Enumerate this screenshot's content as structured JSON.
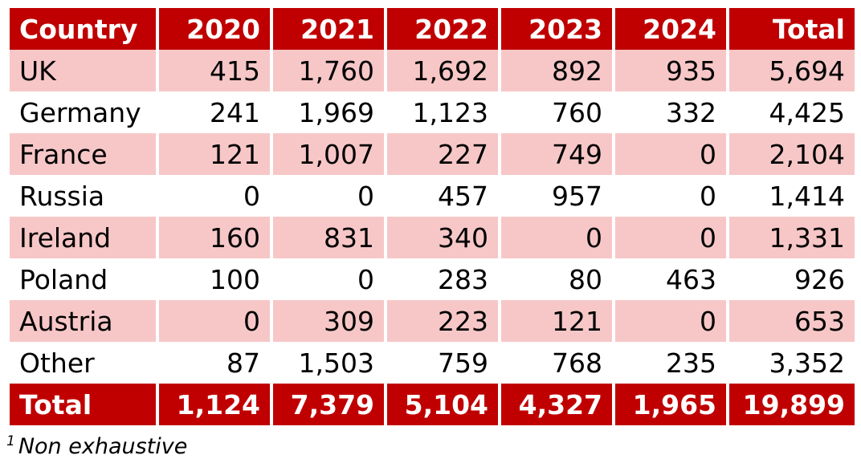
{
  "table": {
    "headers": [
      "Country",
      "2020",
      "2021",
      "2022",
      "2023",
      "2024",
      "Total"
    ],
    "rows": [
      [
        "UK",
        "415",
        "1,760",
        "1,692",
        "892",
        "935",
        "5,694"
      ],
      [
        "Germany",
        "241",
        "1,969",
        "1,123",
        "760",
        "332",
        "4,425"
      ],
      [
        "France",
        "121",
        "1,007",
        "227",
        "749",
        "0",
        "2,104"
      ],
      [
        "Russia",
        "0",
        "0",
        "457",
        "957",
        "0",
        "1,414"
      ],
      [
        "Ireland",
        "160",
        "831",
        "340",
        "0",
        "0",
        "1,331"
      ],
      [
        "Poland",
        "100",
        "0",
        "283",
        "80",
        "463",
        "926"
      ],
      [
        "Austria",
        "0",
        "309",
        "223",
        "121",
        "0",
        "653"
      ],
      [
        "Other",
        "87",
        "1,503",
        "759",
        "768",
        "235",
        "3,352"
      ]
    ],
    "total": [
      "Total",
      "1,124",
      "7,379",
      "5,104",
      "4,327",
      "1,965",
      "19,899"
    ]
  },
  "colors": {
    "header_bg": "#c00000",
    "shade_bg": "#f7c7c7"
  },
  "footnote": {
    "marker": "1",
    "text": "Non exhaustive"
  }
}
